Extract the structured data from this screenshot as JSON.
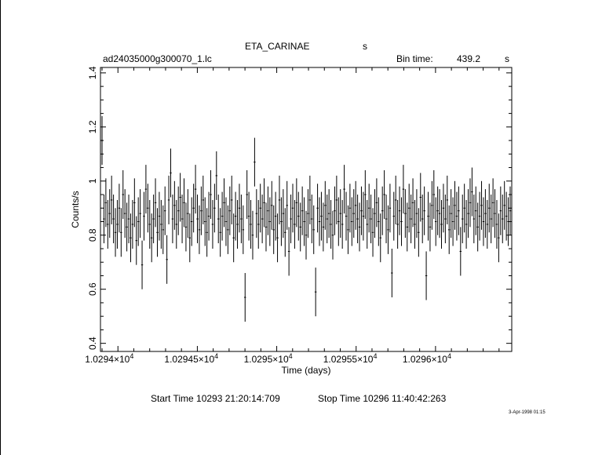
{
  "header": {
    "object": "ETA_CARINAE",
    "object_unit": "s",
    "filename": "ad24035000g300070_1.lc",
    "bin_label": "Bin time:",
    "bin_value": "439.2",
    "bin_unit": "s"
  },
  "footer": {
    "start": "Start Time 10293 21:20:14:709",
    "stop": "Stop Time 10296 11:40:42:263",
    "date_stamp": "3-Apr-1998 01:15"
  },
  "chart_data": {
    "type": "scatter",
    "title": "ETA_CARINAE",
    "xlabel": "Time (days)",
    "ylabel": "Counts/s",
    "xlim": [
      10293.89,
      10296.48
    ],
    "ylim": [
      0.37,
      1.42
    ],
    "x_ticks": [
      {
        "value": 10294.0,
        "mantissa": "1.0294",
        "exp": "4"
      },
      {
        "value": 10294.5,
        "mantissa": "1.02945",
        "exp": "4"
      },
      {
        "value": 10295.0,
        "mantissa": "1.0295",
        "exp": "4"
      },
      {
        "value": 10295.5,
        "mantissa": "1.02955",
        "exp": "4"
      },
      {
        "value": 10296.0,
        "mantissa": "1.0296",
        "exp": "4"
      }
    ],
    "y_ticks": [
      {
        "value": 0.4,
        "label": "0.4"
      },
      {
        "value": 0.6,
        "label": "0.6"
      },
      {
        "value": 0.8,
        "label": "0.8"
      },
      {
        "value": 1.0,
        "label": "1"
      },
      {
        "value": 1.2,
        "label": "1.2"
      },
      {
        "value": 1.4,
        "label": "1.4"
      }
    ],
    "grid": false,
    "series": [
      {
        "x_start": 10293.9,
        "x_end": 10296.47,
        "values": [
          1.15,
          0.86,
          0.92,
          0.84,
          0.88,
          0.93,
          0.86,
          0.81,
          0.84,
          0.9,
          0.81,
          0.95,
          0.88,
          0.83,
          0.86,
          0.79,
          0.84,
          0.92,
          0.78,
          0.85,
          0.88,
          0.69,
          0.87,
          0.97,
          0.9,
          0.84,
          0.79,
          0.86,
          0.92,
          0.81,
          0.87,
          0.84,
          0.82,
          0.89,
          0.71,
          0.93,
          1.03,
          0.86,
          0.91,
          0.84,
          0.89,
          0.94,
          0.86,
          0.92,
          0.83,
          0.88,
          0.79,
          0.85,
          0.9,
          0.97,
          0.86,
          0.82,
          0.89,
          0.93,
          0.85,
          0.81,
          0.87,
          0.95,
          0.84,
          0.9,
          1.02,
          0.86,
          0.81,
          0.87,
          0.92,
          0.85,
          0.82,
          0.89,
          0.93,
          0.79,
          0.87,
          0.84,
          0.9,
          0.86,
          0.82,
          0.57,
          0.95,
          0.87,
          0.84,
          0.8,
          1.07,
          0.88,
          0.84,
          0.9,
          0.86,
          0.92,
          0.83,
          0.89,
          0.85,
          0.91,
          0.82,
          0.87,
          0.79,
          0.93,
          0.85,
          0.88,
          0.81,
          0.91,
          0.74,
          0.86,
          0.9,
          0.84,
          0.92,
          0.87,
          0.83,
          0.89,
          0.85,
          0.8,
          0.88,
          0.93,
          0.86,
          0.82,
          0.59,
          0.9,
          0.85,
          0.87,
          0.83,
          0.91,
          0.86,
          0.88,
          0.84,
          0.8,
          0.89,
          0.93,
          0.85,
          0.88,
          0.84,
          0.97,
          0.87,
          0.82,
          0.9,
          0.85,
          0.88,
          0.91,
          0.86,
          0.83,
          0.89,
          0.87,
          0.95,
          0.84,
          0.9,
          0.86,
          0.81,
          0.88,
          0.92,
          0.85,
          0.79,
          0.89,
          0.95,
          0.86,
          0.82,
          0.9,
          0.66,
          0.87,
          0.93,
          0.84,
          0.89,
          0.85,
          0.97,
          0.88,
          0.83,
          0.9,
          0.86,
          0.92,
          0.84,
          0.88,
          0.81,
          0.94,
          0.86,
          0.89,
          0.65,
          0.87,
          0.83,
          0.91,
          0.95,
          0.85,
          0.89,
          0.88,
          0.84,
          0.9,
          0.86,
          0.93,
          0.82,
          0.88,
          0.85,
          0.91,
          0.87,
          0.89,
          0.74,
          0.86,
          0.9,
          0.84,
          0.88,
          0.92,
          0.96,
          0.86,
          0.89,
          0.83,
          0.87,
          0.91,
          0.85,
          0.88,
          0.84,
          0.9,
          0.86,
          0.92,
          0.88,
          0.84,
          0.79,
          0.89,
          0.86,
          0.91,
          0.87,
          0.85,
          0.89
        ]
      }
    ],
    "error_dy": 0.09
  }
}
